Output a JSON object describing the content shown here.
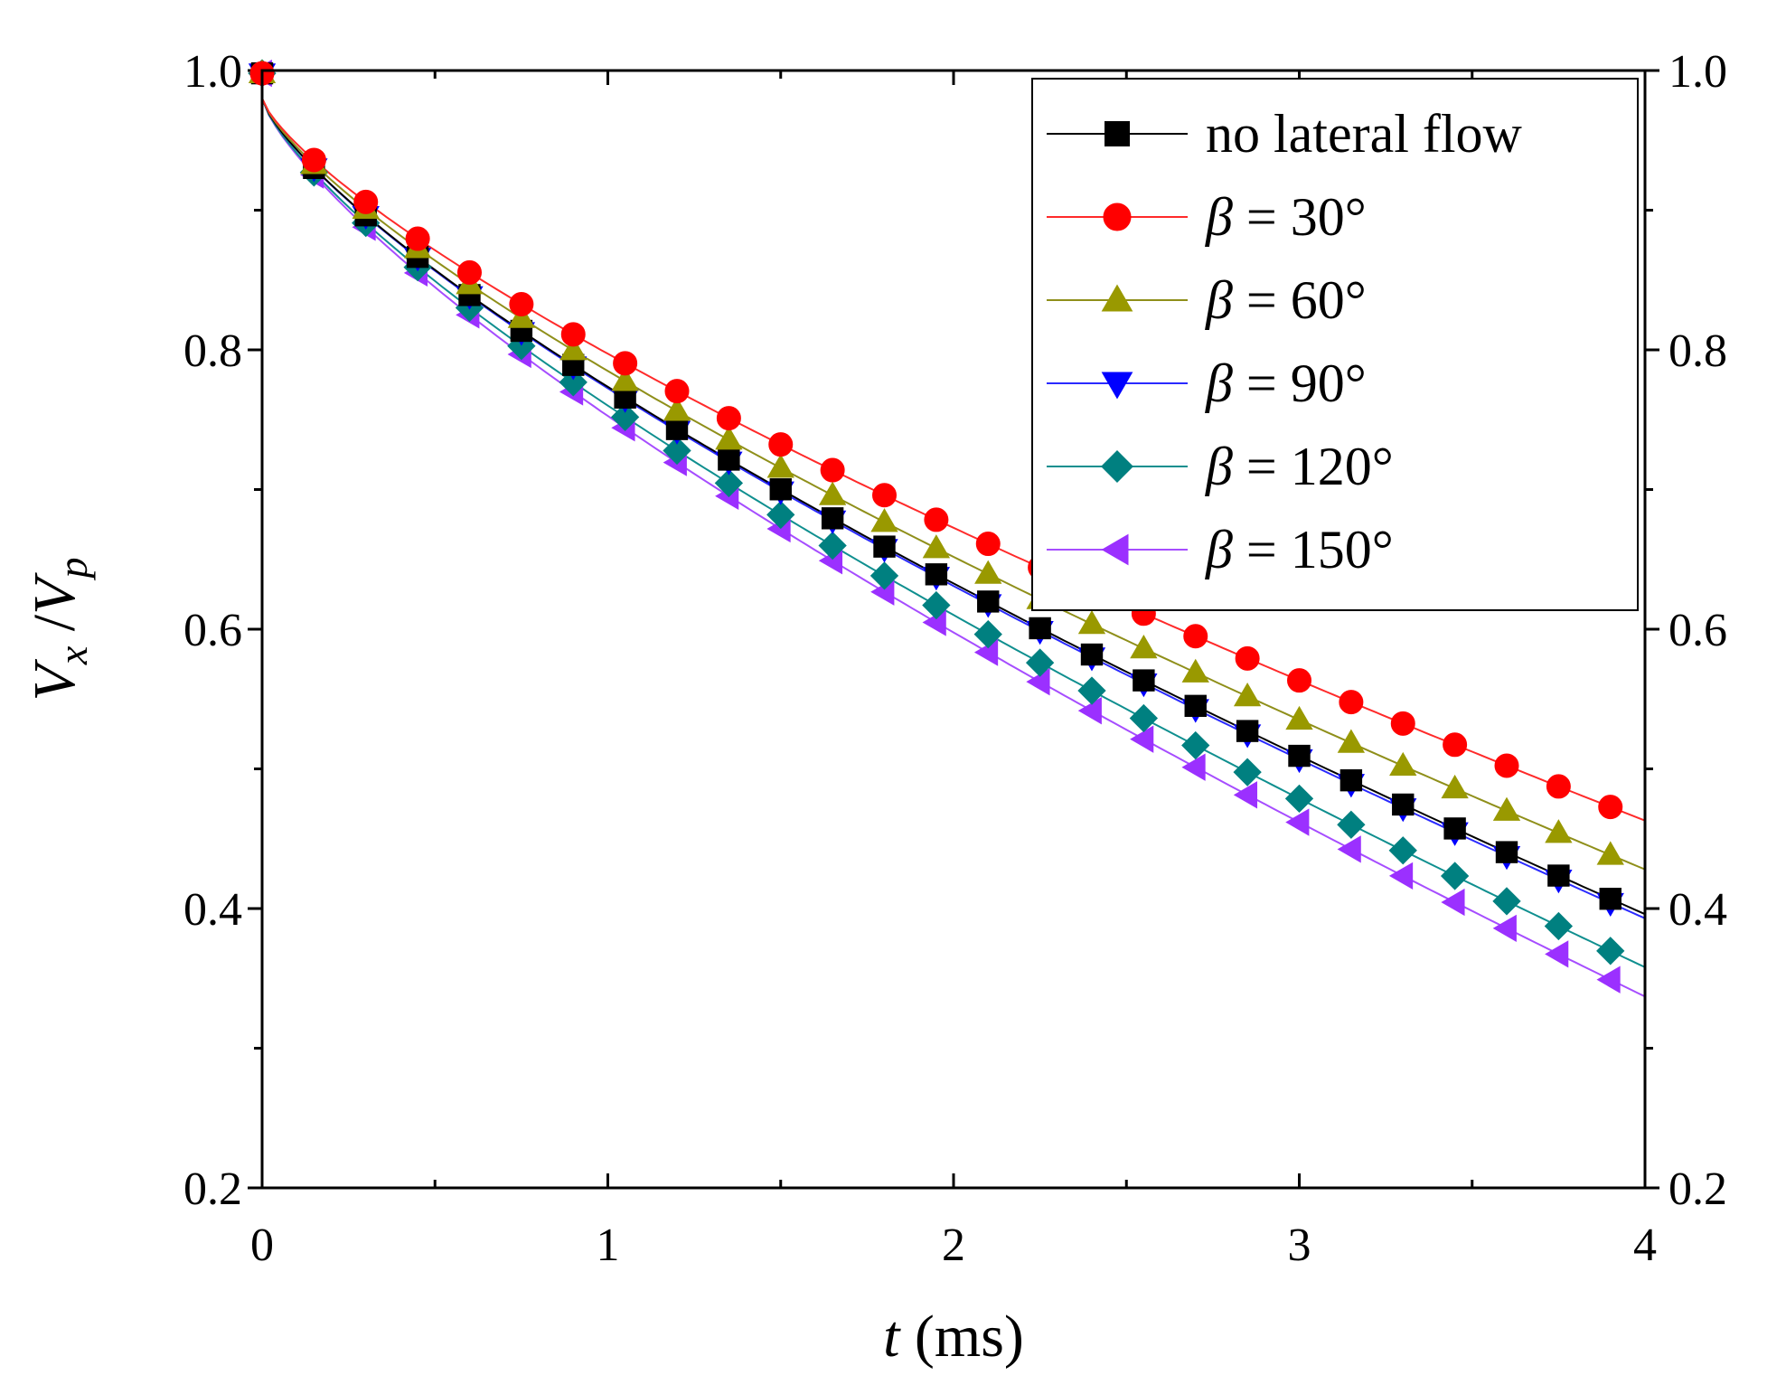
{
  "chart_data": {
    "type": "line",
    "title": "",
    "xlabel": "t (ms)",
    "xlabel_italic": "t",
    "xlabel_unit": " (ms)",
    "ylabel": "Vx /Vp",
    "ylabel_parts": {
      "main": "V",
      "sub1": "x",
      "sep": " /",
      "main2": "V",
      "sub2": "p"
    },
    "xlim": [
      0,
      4
    ],
    "ylim": [
      0.2,
      1.0
    ],
    "xticks": [
      0,
      1,
      2,
      3,
      4
    ],
    "xtick_labels": [
      "0",
      "1",
      "2",
      "3",
      "4"
    ],
    "yticks": [
      0.2,
      0.4,
      0.6,
      0.8,
      1.0
    ],
    "ytick_labels": [
      "0.2",
      "0.4",
      "0.6",
      "0.8",
      "1.0"
    ],
    "right_axis_mirrored": true,
    "legend_position": "top-right",
    "series": [
      {
        "name": "no lateral flow",
        "prefix": "",
        "label": "no lateral flow",
        "marker": "square",
        "color": "#000000",
        "line_color": "#000000",
        "v0": 0.98,
        "v_end": 0.396
      },
      {
        "name": "β = 30°",
        "prefix": "β",
        "label": " = 30°",
        "marker": "circle",
        "color": "#ff0000",
        "line_color": "#ff2a2a",
        "v0": 0.98,
        "v_end": 0.463
      },
      {
        "name": "β = 60°",
        "prefix": "β",
        "label": " = 60°",
        "marker": "triangle-up",
        "color": "#999900",
        "line_color": "#8f8f1a",
        "v0": 0.98,
        "v_end": 0.428
      },
      {
        "name": "β = 90°",
        "prefix": "β",
        "label": " = 90°",
        "marker": "triangle-down",
        "color": "#0000ff",
        "line_color": "#2a2aff",
        "v0": 0.98,
        "v_end": 0.393
      },
      {
        "name": "β = 120°",
        "prefix": "β",
        "label": " = 120°",
        "marker": "diamond",
        "color": "#008080",
        "line_color": "#0f8f8f",
        "v0": 0.98,
        "v_end": 0.358
      },
      {
        "name": "β = 150°",
        "prefix": "β",
        "label": " = 150°",
        "marker": "triangle-left",
        "color": "#9b30ff",
        "line_color": "#a64dff",
        "v0": 0.98,
        "v_end": 0.337
      }
    ],
    "marker_x": [
      0,
      0.15,
      0.3,
      0.45,
      0.6,
      0.75,
      0.9,
      1.05,
      1.2,
      1.35,
      1.5,
      1.65,
      1.8,
      1.95,
      2.1,
      2.25,
      2.4,
      2.55,
      2.7,
      2.85,
      3.0,
      3.15,
      3.3,
      3.45,
      3.6,
      3.75,
      3.9
    ]
  }
}
